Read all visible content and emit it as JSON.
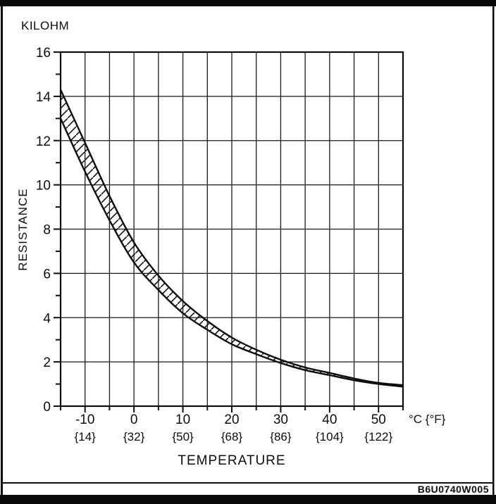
{
  "page": {
    "figure_code": "B6U0740W005"
  },
  "chart_data": {
    "type": "area",
    "title": "",
    "y_unit_label": "KILOHM",
    "ylabel": "RESISTANCE",
    "xlabel": "TEMPERATURE",
    "x_axis_unit_label": "°C {°F}",
    "xlim": [
      -15,
      55
    ],
    "ylim": [
      0,
      16
    ],
    "grid": true,
    "x_grid_step": 5,
    "y_grid_step": 2,
    "x_minor_tick_step": 5,
    "y_minor_tick_step": 1,
    "x_ticks": [
      -10,
      0,
      10,
      20,
      30,
      40,
      50
    ],
    "x_tick_labels": [
      "-10",
      "0",
      "10",
      "20",
      "30",
      "40",
      "50"
    ],
    "x_tick_labels_fahrenheit": [
      "{14}",
      "{32}",
      "{50}",
      "{68}",
      "{86}",
      "{104}",
      "{122}"
    ],
    "y_ticks": [
      0,
      2,
      4,
      6,
      8,
      10,
      12,
      14,
      16
    ],
    "y_tick_labels": [
      "0",
      "2",
      "4",
      "6",
      "8",
      "10",
      "12",
      "14",
      "16"
    ],
    "band_fill": "hatched",
    "x": [
      -15,
      -10,
      -5,
      0,
      5,
      10,
      15,
      20,
      25,
      30,
      35,
      40,
      45,
      50,
      55
    ],
    "series": [
      {
        "name": "upper_limit",
        "values": [
          14.3,
          11.9,
          9.5,
          7.4,
          5.9,
          4.75,
          3.85,
          3.1,
          2.55,
          2.1,
          1.75,
          1.5,
          1.25,
          1.05,
          0.95
        ]
      },
      {
        "name": "lower_limit",
        "values": [
          13.0,
          10.6,
          8.4,
          6.5,
          5.25,
          4.2,
          3.45,
          2.8,
          2.35,
          1.95,
          1.63,
          1.4,
          1.17,
          1.0,
          0.88
        ]
      }
    ]
  }
}
